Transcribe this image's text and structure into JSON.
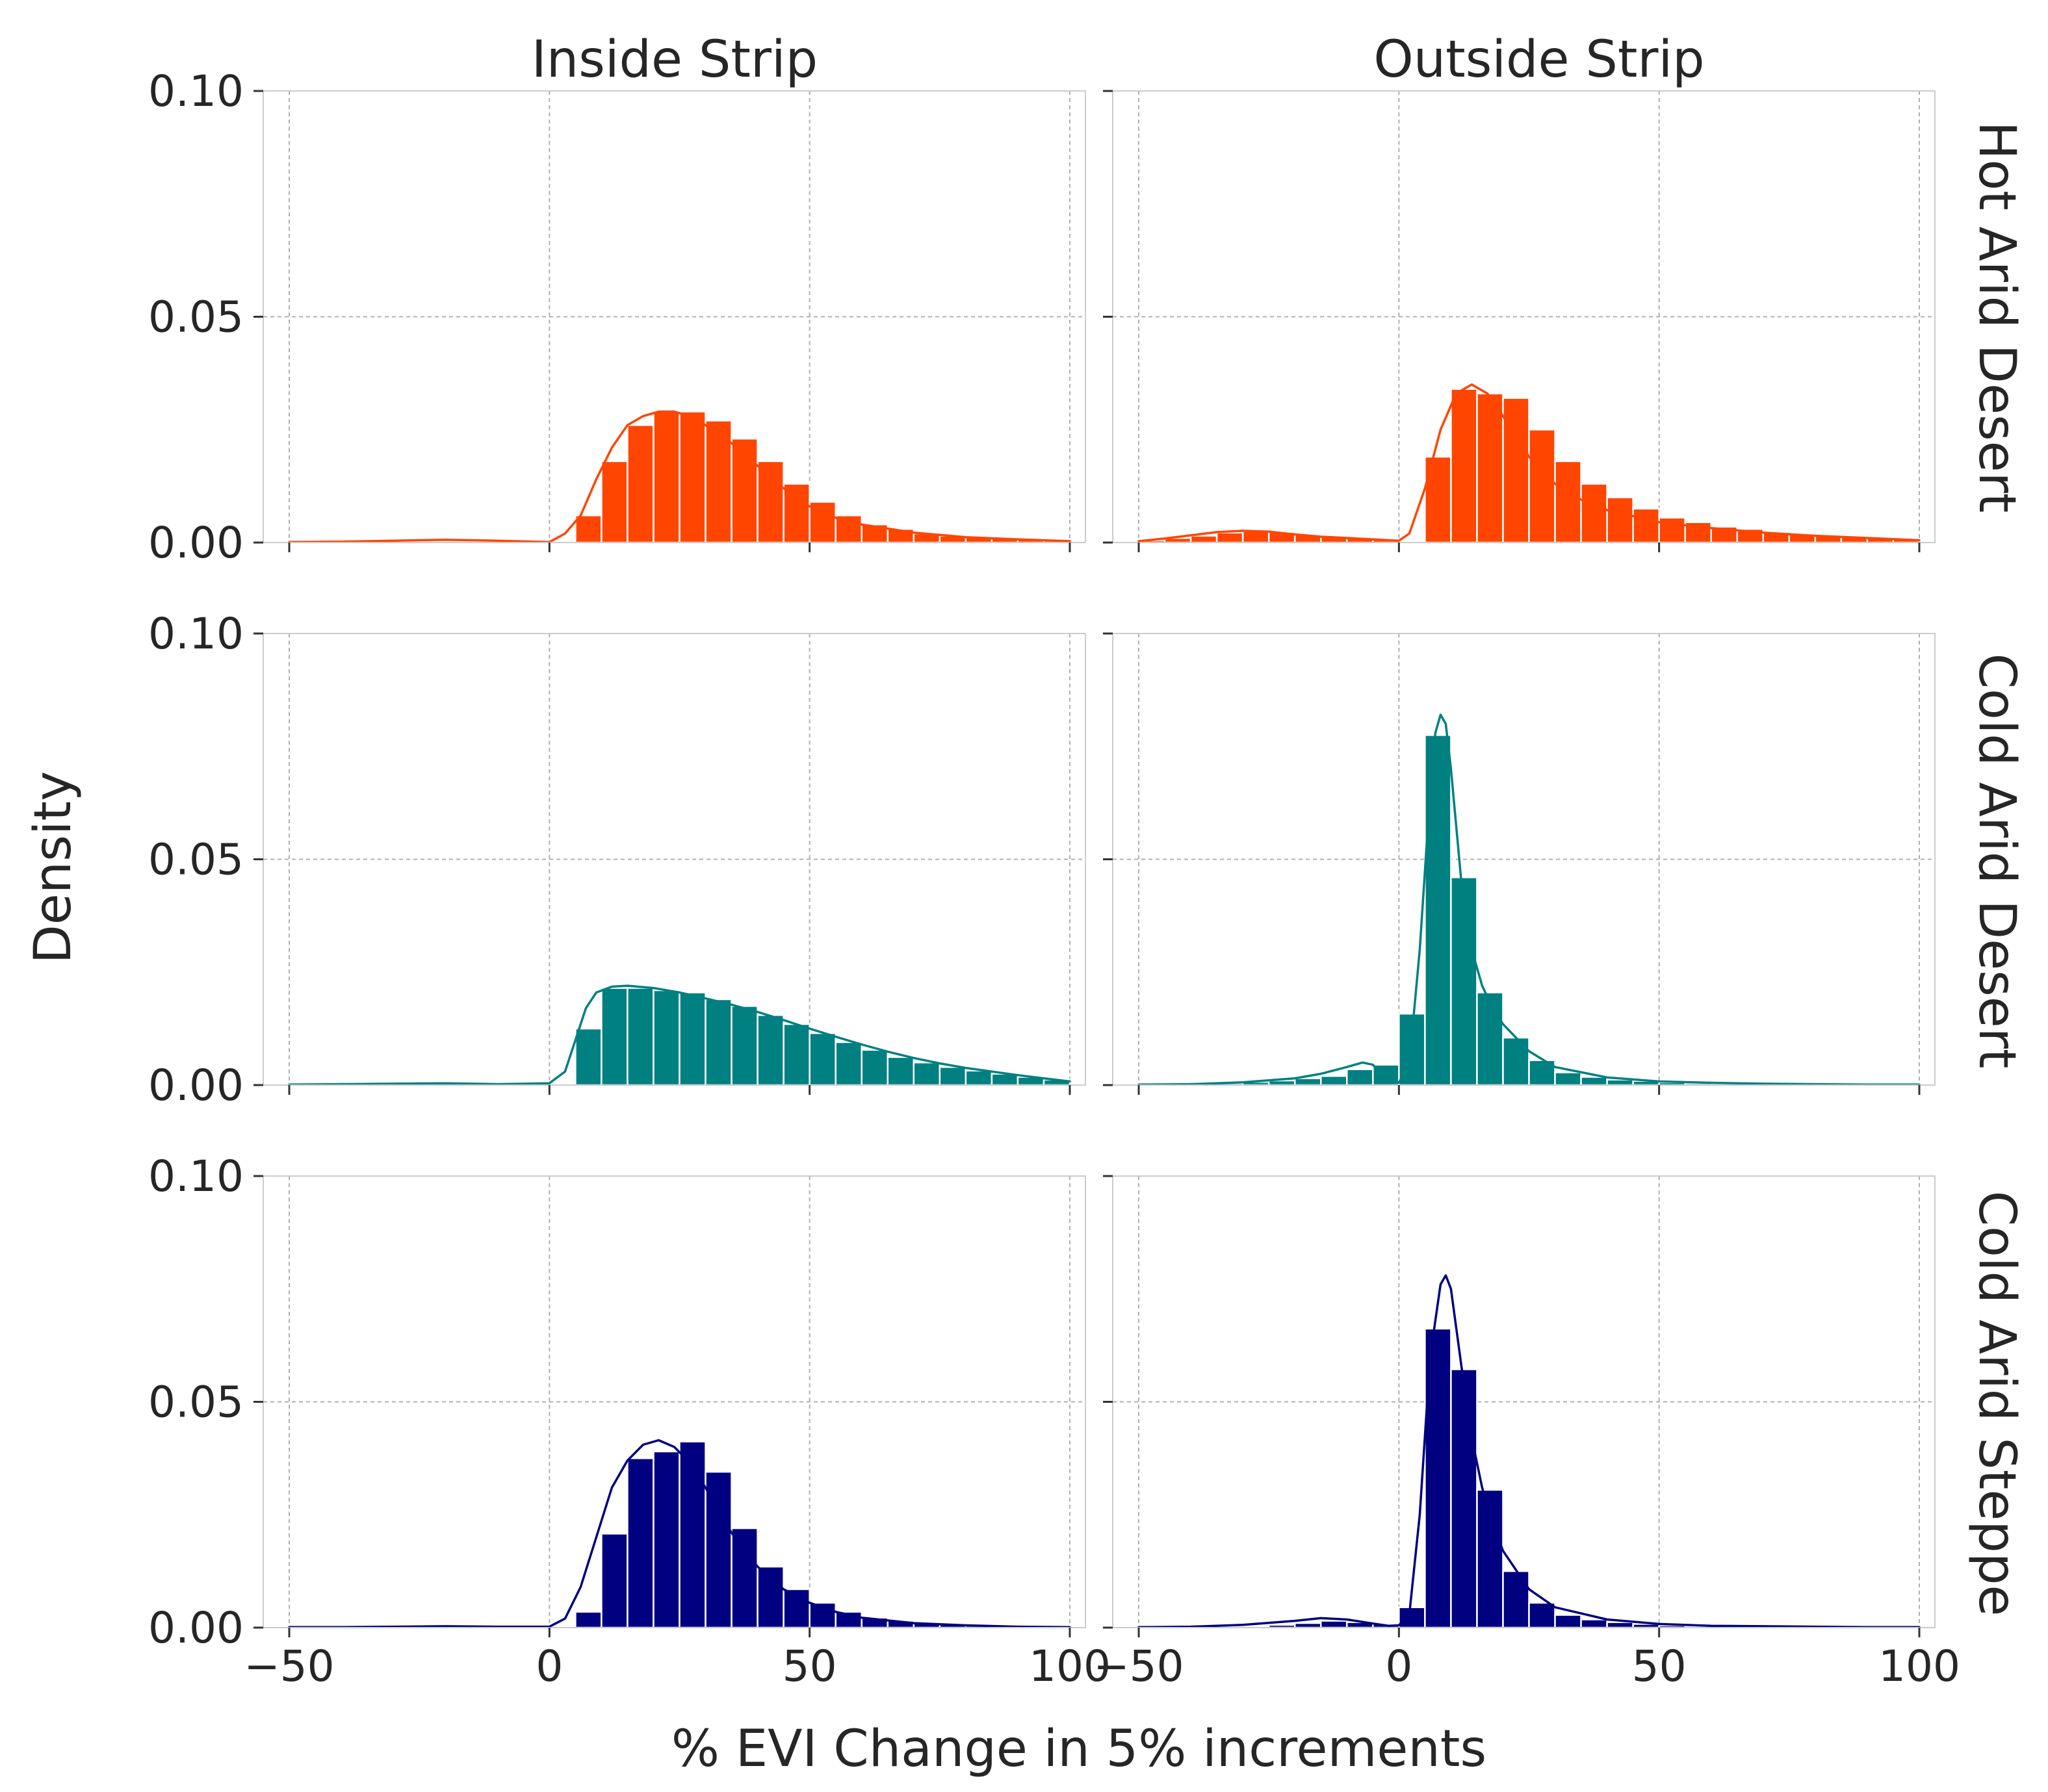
{
  "chart_data": {
    "type": "histogram-grid",
    "xlabel": "% EVI Change in 5% increments",
    "ylabel": "Density",
    "columns": [
      "Inside Strip",
      "Outside Strip"
    ],
    "rows": [
      "Hot Arid Desert",
      "Cold Arid Desert",
      "Cold Arid Steppe"
    ],
    "xlim": [
      -55,
      103
    ],
    "ylim": [
      0,
      0.1
    ],
    "xticks": [
      -50,
      0,
      50,
      100
    ],
    "yticks": [
      0.0,
      0.05,
      0.1
    ],
    "xtick_labels": [
      "−50",
      "0",
      "50",
      "100"
    ],
    "ytick_labels": [
      "0.00",
      "0.05",
      "0.10"
    ],
    "bin_width": 5,
    "grid": true,
    "colors": {
      "Hot Arid Desert": "#ff4500",
      "Cold Arid Desert": "#008080",
      "Cold Arid Steppe": "#000080"
    },
    "panels": [
      {
        "row": "Hot Arid Desert",
        "column": "Inside Strip",
        "bin_starts": [
          5,
          10,
          15,
          20,
          25,
          30,
          35,
          40,
          45,
          50,
          55,
          60,
          65,
          70,
          75,
          80,
          85,
          90,
          95
        ],
        "values": [
          0.006,
          0.018,
          0.026,
          0.029,
          0.029,
          0.027,
          0.023,
          0.018,
          0.013,
          0.009,
          0.006,
          0.004,
          0.003,
          0.002,
          0.0015,
          0.0012,
          0.001,
          0.0008,
          0.0006
        ],
        "kde_x": [
          -50,
          -40,
          -30,
          -20,
          -10,
          0,
          3,
          6,
          9,
          12,
          15,
          18,
          21,
          24,
          27,
          30,
          35,
          40,
          45,
          50,
          55,
          60,
          70,
          80,
          90,
          100
        ],
        "kde_y": [
          0.0001,
          0.0002,
          0.0004,
          0.0006,
          0.0004,
          0.0001,
          0.002,
          0.006,
          0.014,
          0.021,
          0.026,
          0.028,
          0.029,
          0.029,
          0.028,
          0.026,
          0.022,
          0.017,
          0.012,
          0.008,
          0.0055,
          0.004,
          0.0022,
          0.0012,
          0.0007,
          0.0003
        ]
      },
      {
        "row": "Hot Arid Desert",
        "column": "Outside Strip",
        "bin_starts": [
          -50,
          -45,
          -40,
          -35,
          -30,
          -25,
          -20,
          -15,
          -10,
          -5,
          5,
          10,
          15,
          20,
          25,
          30,
          35,
          40,
          45,
          50,
          55,
          60,
          65,
          70,
          75,
          80,
          85,
          90,
          95
        ],
        "values": [
          0.0005,
          0.001,
          0.0015,
          0.0022,
          0.0025,
          0.0023,
          0.0017,
          0.0013,
          0.001,
          0.0006,
          0.019,
          0.034,
          0.033,
          0.032,
          0.025,
          0.018,
          0.013,
          0.01,
          0.0075,
          0.0055,
          0.0045,
          0.0035,
          0.003,
          0.0023,
          0.0018,
          0.0015,
          0.0012,
          0.001,
          0.0008
        ],
        "kde_x": [
          -50,
          -45,
          -40,
          -35,
          -30,
          -25,
          -20,
          -15,
          -10,
          -5,
          0,
          2,
          5,
          8,
          11,
          14,
          17,
          20,
          25,
          30,
          35,
          40,
          50,
          60,
          70,
          80,
          90,
          100
        ],
        "kde_y": [
          0.0003,
          0.0009,
          0.0016,
          0.0023,
          0.0026,
          0.0024,
          0.0018,
          0.0013,
          0.001,
          0.0007,
          0.0004,
          0.002,
          0.012,
          0.025,
          0.033,
          0.035,
          0.033,
          0.028,
          0.019,
          0.013,
          0.0095,
          0.0072,
          0.0045,
          0.0032,
          0.0022,
          0.0015,
          0.001,
          0.0005
        ]
      },
      {
        "row": "Cold Arid Desert",
        "column": "Inside Strip",
        "bin_starts": [
          5,
          10,
          15,
          20,
          25,
          30,
          35,
          40,
          45,
          50,
          55,
          60,
          65,
          70,
          75,
          80,
          85,
          90,
          95
        ],
        "values": [
          0.0125,
          0.0215,
          0.0215,
          0.021,
          0.0205,
          0.019,
          0.0175,
          0.0155,
          0.0135,
          0.0115,
          0.0095,
          0.0078,
          0.0062,
          0.005,
          0.004,
          0.0032,
          0.0025,
          0.0018,
          0.0012
        ],
        "kde_x": [
          -50,
          -40,
          -30,
          -20,
          -10,
          0,
          3,
          5,
          7,
          9,
          12,
          15,
          20,
          25,
          30,
          35,
          40,
          45,
          50,
          55,
          60,
          65,
          70,
          75,
          80,
          85,
          90,
          95,
          100
        ],
        "kde_y": [
          0.0001,
          0.0002,
          0.0003,
          0.0004,
          0.0002,
          0.0004,
          0.003,
          0.01,
          0.017,
          0.0205,
          0.0218,
          0.022,
          0.0215,
          0.0205,
          0.0192,
          0.0178,
          0.0162,
          0.0144,
          0.0125,
          0.0107,
          0.009,
          0.0074,
          0.006,
          0.0048,
          0.0038,
          0.003,
          0.0022,
          0.0015,
          0.0008
        ]
      },
      {
        "row": "Cold Arid Desert",
        "column": "Outside Strip",
        "bin_starts": [
          -35,
          -30,
          -25,
          -20,
          -15,
          -10,
          -5,
          0,
          5,
          10,
          15,
          20,
          25,
          30,
          35,
          40,
          45,
          50,
          55,
          60
        ],
        "values": [
          0.0004,
          0.0007,
          0.001,
          0.0015,
          0.002,
          0.0035,
          0.0045,
          0.0158,
          0.0775,
          0.046,
          0.0205,
          0.0105,
          0.0055,
          0.0028,
          0.0018,
          0.0012,
          0.0009,
          0.0006,
          0.0004,
          0.0003
        ],
        "kde_x": [
          -50,
          -40,
          -30,
          -20,
          -15,
          -10,
          -7,
          -5,
          -3,
          0,
          2,
          4,
          6,
          7,
          8,
          9,
          10,
          12,
          14,
          16,
          18,
          20,
          25,
          30,
          40,
          50,
          60,
          70,
          80,
          90,
          100
        ],
        "kde_y": [
          0.0001,
          0.0002,
          0.0006,
          0.0015,
          0.0025,
          0.004,
          0.005,
          0.0045,
          0.002,
          0.0005,
          0.005,
          0.03,
          0.065,
          0.078,
          0.082,
          0.08,
          0.07,
          0.045,
          0.03,
          0.022,
          0.017,
          0.0135,
          0.0075,
          0.004,
          0.0017,
          0.0008,
          0.0005,
          0.0003,
          0.0002,
          0.0001,
          0.0001
        ]
      },
      {
        "row": "Cold Arid Steppe",
        "column": "Inside Strip",
        "bin_starts": [
          5,
          10,
          15,
          20,
          25,
          30,
          35,
          40,
          45,
          50,
          55,
          60,
          65,
          70,
          75,
          80,
          85,
          90,
          95
        ],
        "values": [
          0.0035,
          0.0208,
          0.0375,
          0.039,
          0.0412,
          0.0345,
          0.022,
          0.0135,
          0.0085,
          0.0055,
          0.0035,
          0.0022,
          0.0015,
          0.001,
          0.0007,
          0.0005,
          0.0004,
          0.0003,
          0.0002
        ],
        "kde_x": [
          -50,
          -40,
          -30,
          -20,
          -10,
          0,
          3,
          6,
          9,
          12,
          15,
          18,
          21,
          24,
          27,
          30,
          35,
          40,
          45,
          50,
          55,
          60,
          70,
          80,
          90,
          100
        ],
        "kde_y": [
          0.0001,
          0.0001,
          0.0002,
          0.0003,
          0.0002,
          0.0002,
          0.002,
          0.009,
          0.02,
          0.031,
          0.037,
          0.0405,
          0.0415,
          0.04,
          0.0365,
          0.031,
          0.021,
          0.0135,
          0.0085,
          0.0055,
          0.0035,
          0.0022,
          0.001,
          0.0005,
          0.0002,
          0.0001
        ]
      },
      {
        "row": "Cold Arid Steppe",
        "column": "Outside Strip",
        "bin_starts": [
          -30,
          -25,
          -20,
          -15,
          -10,
          -5,
          0,
          5,
          10,
          15,
          20,
          25,
          30,
          35,
          40,
          45,
          50,
          55,
          60
        ],
        "values": [
          0.0003,
          0.0006,
          0.001,
          0.0015,
          0.0012,
          0.0008,
          0.0045,
          0.0662,
          0.0572,
          0.0305,
          0.0125,
          0.0055,
          0.0028,
          0.0018,
          0.0012,
          0.0008,
          0.0005,
          0.0003,
          0.0002
        ],
        "kde_x": [
          -50,
          -40,
          -30,
          -20,
          -15,
          -10,
          -5,
          -2,
          0,
          2,
          4,
          6,
          8,
          9,
          10,
          12,
          14,
          16,
          18,
          20,
          25,
          30,
          40,
          50,
          60,
          70,
          80,
          90,
          100
        ],
        "kde_y": [
          0.0001,
          0.0002,
          0.0006,
          0.0015,
          0.0021,
          0.0018,
          0.0009,
          0.0004,
          0.0005,
          0.003,
          0.025,
          0.06,
          0.076,
          0.078,
          0.075,
          0.058,
          0.042,
          0.031,
          0.023,
          0.017,
          0.0085,
          0.0045,
          0.0018,
          0.0008,
          0.0004,
          0.0003,
          0.0002,
          0.0001,
          0.0001
        ]
      }
    ]
  }
}
